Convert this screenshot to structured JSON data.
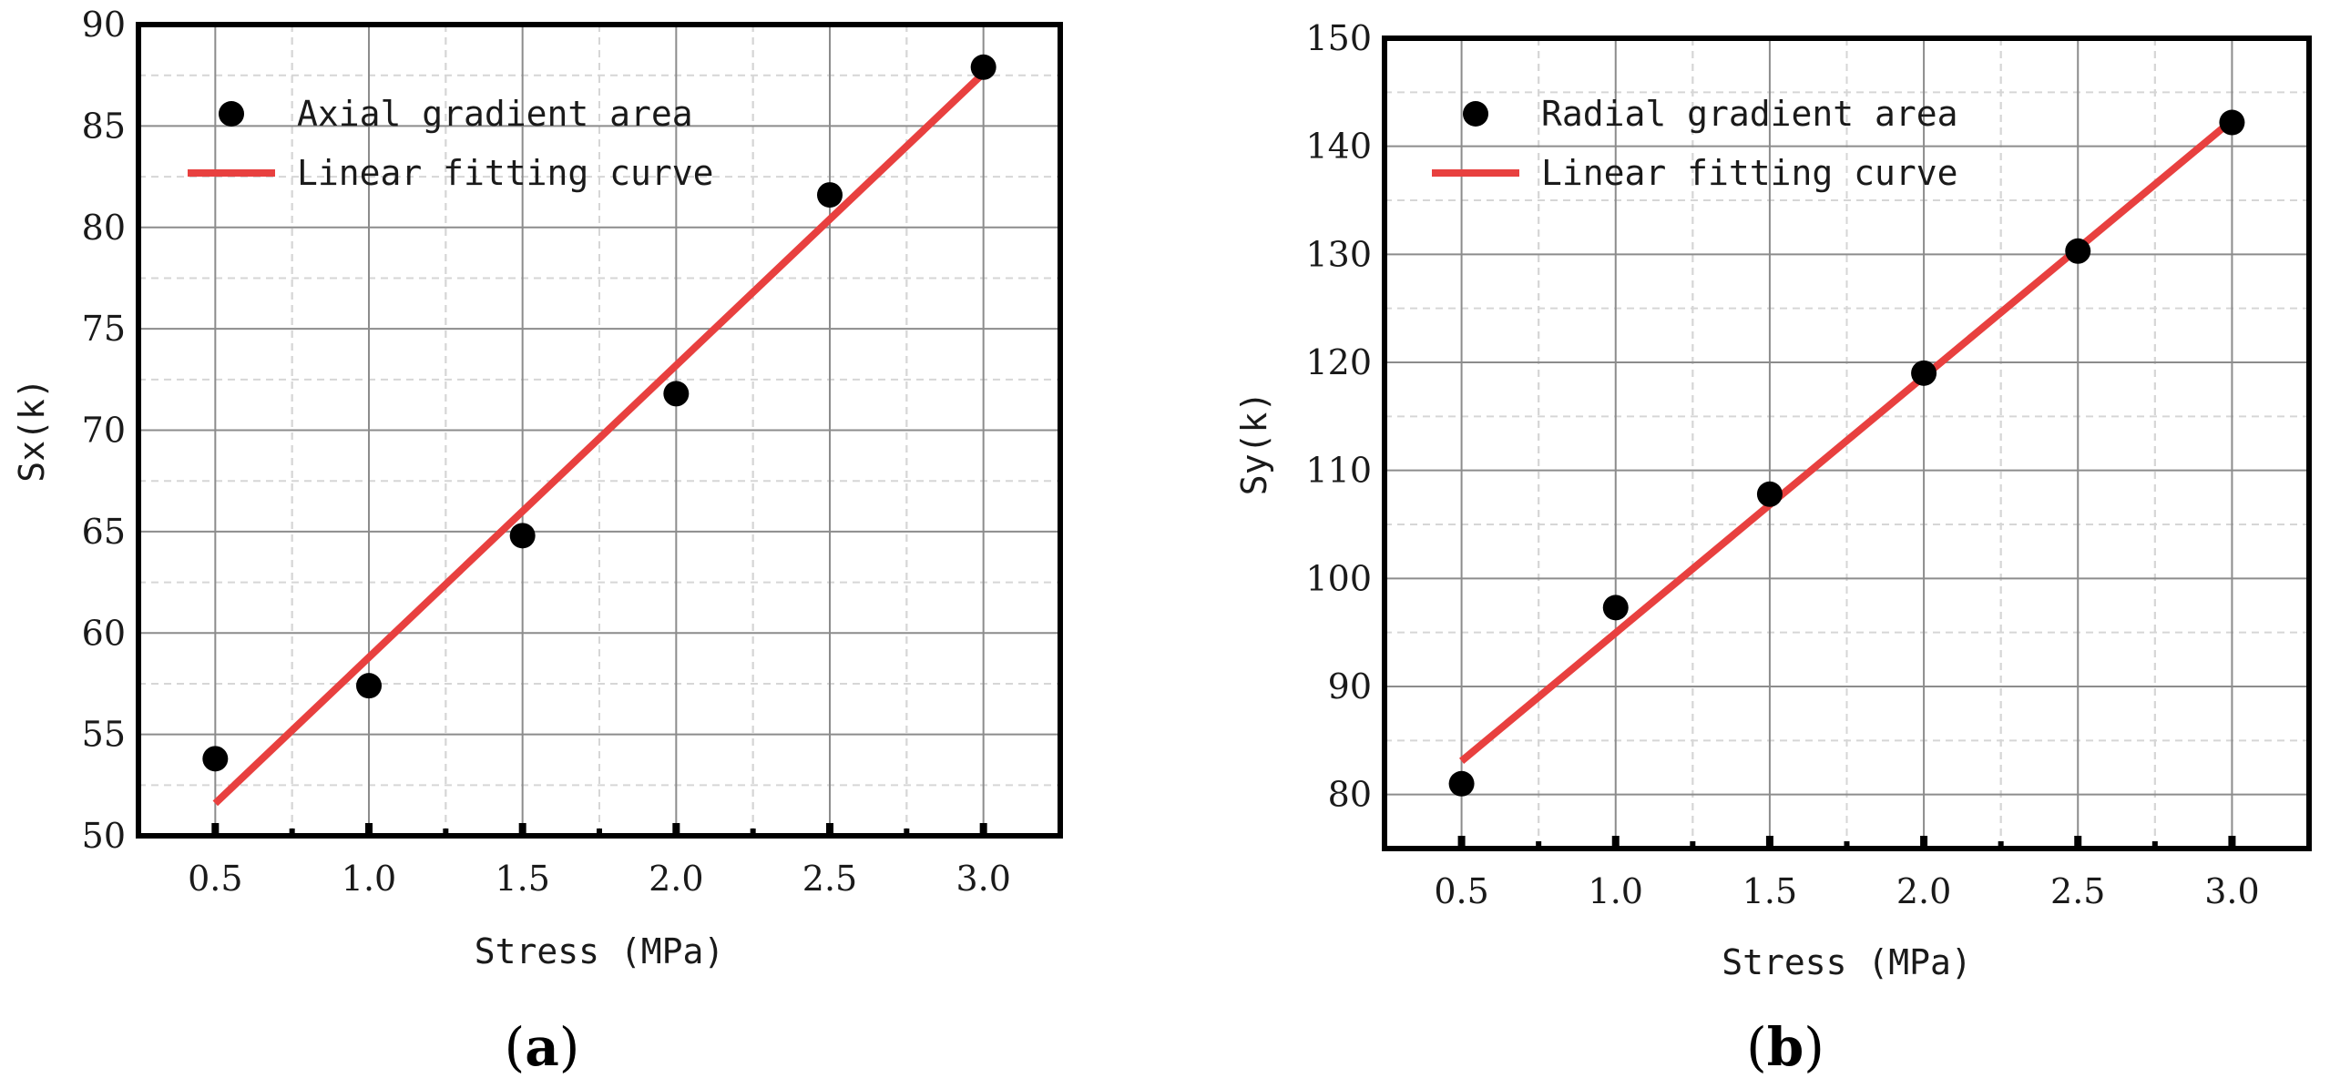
{
  "chart_data": [
    {
      "type": "scatter",
      "panel_label": "(a)",
      "panel_letter": "a",
      "xlabel": "Stress (MPa)",
      "ylabel": "Sx(k)",
      "xlim": [
        0.25,
        3.25
      ],
      "ylim": [
        50,
        90
      ],
      "x_ticks": [
        "0.5",
        "1.0",
        "1.5",
        "2.0",
        "2.5",
        "3.0"
      ],
      "y_ticks": [
        "50",
        "55",
        "60",
        "65",
        "70",
        "75",
        "80",
        "85",
        "90"
      ],
      "grid": true,
      "legend_position": "top-left",
      "series": [
        {
          "name": "Axial gradient area",
          "kind": "points",
          "color": "#000000",
          "x": [
            0.5,
            1.0,
            1.5,
            2.0,
            2.5,
            3.0
          ],
          "y": [
            53.8,
            57.4,
            64.8,
            71.8,
            81.6,
            87.9
          ]
        },
        {
          "name": "Linear fitting curve",
          "kind": "line",
          "color": "#e8403f",
          "x": [
            0.5,
            3.0
          ],
          "y": [
            51.6,
            87.6
          ]
        }
      ]
    },
    {
      "type": "scatter",
      "panel_label": "(b)",
      "panel_letter": "b",
      "xlabel": "Stress (MPa)",
      "ylabel": "Sy(k)",
      "xlim": [
        0.25,
        3.25
      ],
      "ylim": [
        75,
        150
      ],
      "x_ticks": [
        "0.5",
        "1.0",
        "1.5",
        "2.0",
        "2.5",
        "3.0"
      ],
      "y_ticks": [
        "80",
        "90",
        "100",
        "110",
        "120",
        "130",
        "140",
        "150"
      ],
      "grid": true,
      "legend_position": "top-left",
      "series": [
        {
          "name": "Radial gradient area",
          "kind": "points",
          "color": "#000000",
          "x": [
            0.5,
            1.0,
            1.5,
            2.0,
            2.5,
            3.0
          ],
          "y": [
            81.0,
            97.3,
            107.8,
            119.0,
            130.3,
            142.2
          ]
        },
        {
          "name": "Linear fitting curve",
          "kind": "line",
          "color": "#e8403f",
          "x": [
            0.5,
            3.0
          ],
          "y": [
            83.1,
            142.4
          ]
        }
      ]
    }
  ]
}
